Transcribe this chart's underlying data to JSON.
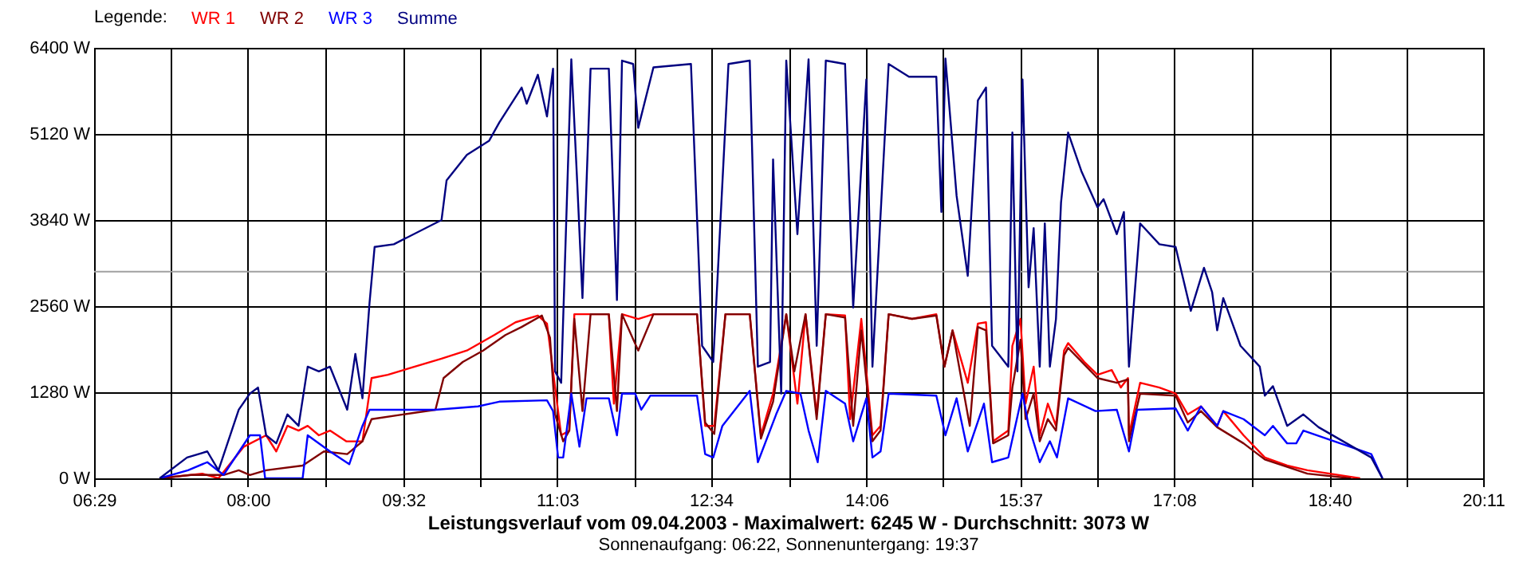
{
  "chart_data": {
    "type": "line",
    "title": "Leistungsverlauf vom 09.04.2003 - Maximalwert: 6245 W - Durchschnitt: 3073 W",
    "subtitle": "Sonnenaufgang: 06:22, Sonnenuntergang: 19:37",
    "legend_title": "Legende:",
    "legend": "top left",
    "grid": true,
    "marker": "none",
    "line_style": "solid",
    "xlim": [
      6.4833,
      20.1833
    ],
    "xticks": [
      {
        "value": 6.4833,
        "label": "06:29"
      },
      {
        "value": 7.2417,
        "label": null
      },
      {
        "value": 8.0,
        "label": "08:00"
      },
      {
        "value": 8.7667,
        "label": null
      },
      {
        "value": 9.5333,
        "label": "09:32"
      },
      {
        "value": 10.2917,
        "label": null
      },
      {
        "value": 11.05,
        "label": "11:03"
      },
      {
        "value": 11.8083,
        "label": null
      },
      {
        "value": 12.5667,
        "label": "12:34"
      },
      {
        "value": 13.3333,
        "label": null
      },
      {
        "value": 14.1,
        "label": "14:06"
      },
      {
        "value": 14.8583,
        "label": null
      },
      {
        "value": 15.6167,
        "label": "15:37"
      },
      {
        "value": 16.375,
        "label": null
      },
      {
        "value": 17.1333,
        "label": "17:08"
      },
      {
        "value": 17.9,
        "label": null
      },
      {
        "value": 18.6667,
        "label": "18:40"
      },
      {
        "value": 19.425,
        "label": null
      },
      {
        "value": 20.1833,
        "label": "20:11"
      }
    ],
    "ylim": [
      0,
      6400
    ],
    "yticks": [
      {
        "value": 0,
        "label": "0 W"
      },
      {
        "value": 1280,
        "label": "1280 W"
      },
      {
        "value": 2560,
        "label": "2560 W"
      },
      {
        "value": 3840,
        "label": "3840 W"
      },
      {
        "value": 5120,
        "label": "5120 W"
      },
      {
        "value": 6400,
        "label": "6400 W"
      }
    ],
    "ref_lines": [
      {
        "axis": "y",
        "value": 3073,
        "color": "#a0a0a0"
      }
    ],
    "series": [
      {
        "name": "WR 1",
        "color": "#ff0000",
        "x": [
          7.13,
          7.55,
          7.71,
          7.96,
          8.18,
          8.28,
          8.39,
          8.5,
          8.59,
          8.7,
          8.81,
          8.97,
          9.13,
          9.22,
          9.38,
          9.91,
          10.16,
          10.43,
          10.64,
          10.86,
          10.95,
          11.01,
          11.09,
          11.17,
          11.22,
          11.38,
          11.56,
          11.61,
          11.69,
          11.85,
          12.0,
          12.43,
          12.51,
          12.6,
          12.71,
          12.95,
          13.06,
          13.18,
          13.31,
          13.42,
          13.5,
          13.61,
          13.7,
          13.89,
          13.94,
          14.05,
          14.16,
          14.24,
          14.32,
          14.55,
          14.79,
          14.87,
          14.95,
          15.1,
          15.2,
          15.28,
          15.35,
          15.5,
          15.54,
          15.62,
          15.67,
          15.75,
          15.81,
          15.89,
          15.97,
          16.05,
          16.09,
          16.25,
          16.38,
          16.52,
          16.61,
          16.68,
          16.69,
          16.8,
          16.99,
          17.15,
          17.27,
          17.4,
          17.56,
          17.62,
          17.82,
          18.03,
          18.25,
          18.45,
          18.97
        ],
        "values": [
          0,
          70,
          0,
          470,
          640,
          400,
          780,
          710,
          780,
          640,
          710,
          550,
          550,
          1490,
          1540,
          1780,
          1900,
          2130,
          2320,
          2420,
          2300,
          1590,
          640,
          710,
          2440,
          2440,
          2440,
          1110,
          2440,
          2370,
          2440,
          2440,
          780,
          780,
          2440,
          2440,
          640,
          1260,
          2440,
          1110,
          2440,
          950,
          2440,
          2420,
          880,
          2370,
          640,
          780,
          2440,
          2370,
          2440,
          1660,
          2200,
          1420,
          2300,
          2320,
          550,
          710,
          1970,
          2370,
          1110,
          1660,
          640,
          1110,
          780,
          1900,
          2010,
          1730,
          1540,
          1610,
          1350,
          1490,
          640,
          1420,
          1350,
          1260,
          950,
          1070,
          780,
          1000,
          640,
          310,
          190,
          120,
          0
        ]
      },
      {
        "name": "WR 2",
        "color": "#800000",
        "x": [
          7.13,
          7.44,
          7.76,
          7.91,
          8.02,
          8.18,
          8.54,
          8.75,
          8.98,
          9.13,
          9.22,
          9.53,
          9.85,
          9.93,
          10.12,
          10.32,
          10.54,
          10.7,
          10.9,
          10.98,
          11.03,
          11.11,
          11.17,
          11.22,
          11.3,
          11.38,
          11.56,
          11.64,
          11.69,
          11.85,
          12.0,
          12.43,
          12.51,
          12.6,
          12.71,
          12.95,
          13.06,
          13.18,
          13.31,
          13.39,
          13.5,
          13.61,
          13.7,
          13.89,
          13.97,
          14.05,
          14.16,
          14.24,
          14.32,
          14.55,
          14.79,
          14.87,
          14.95,
          15.12,
          15.2,
          15.28,
          15.35,
          15.5,
          15.54,
          15.62,
          15.67,
          15.75,
          15.81,
          15.89,
          15.97,
          16.05,
          16.09,
          16.38,
          16.57,
          16.68,
          16.69,
          16.8,
          17.15,
          17.27,
          17.4,
          17.56,
          17.82,
          18.03,
          18.25,
          18.45,
          18.88
        ],
        "values": [
          0,
          50,
          50,
          120,
          50,
          120,
          190,
          400,
          360,
          550,
          880,
          950,
          1020,
          1490,
          1730,
          1900,
          2130,
          2250,
          2420,
          2090,
          950,
          550,
          710,
          2370,
          1000,
          2440,
          2440,
          1000,
          2440,
          1900,
          2440,
          2440,
          830,
          660,
          2440,
          2440,
          590,
          1140,
          2440,
          1590,
          2440,
          880,
          2440,
          2390,
          780,
          2200,
          550,
          710,
          2440,
          2370,
          2420,
          1660,
          2200,
          780,
          2250,
          2200,
          520,
          640,
          1350,
          2060,
          880,
          1260,
          550,
          880,
          710,
          1830,
          1940,
          1490,
          1420,
          1470,
          550,
          1260,
          1230,
          830,
          1000,
          760,
          520,
          280,
          170,
          70,
          0
        ]
      },
      {
        "name": "WR 3",
        "color": "#0000ff",
        "x": [
          7.13,
          7.41,
          7.6,
          7.76,
          8.02,
          8.12,
          8.17,
          8.54,
          8.59,
          8.81,
          9.0,
          9.13,
          9.2,
          9.85,
          10.27,
          10.48,
          10.95,
          11.01,
          11.06,
          11.11,
          11.19,
          11.27,
          11.34,
          11.56,
          11.64,
          11.69,
          11.82,
          11.88,
          11.97,
          12.43,
          12.51,
          12.59,
          12.68,
          12.95,
          13.03,
          13.21,
          13.31,
          13.45,
          13.53,
          13.62,
          13.7,
          13.89,
          13.97,
          14.1,
          14.16,
          14.24,
          14.32,
          14.79,
          14.88,
          14.99,
          15.1,
          15.26,
          15.34,
          15.5,
          15.64,
          15.7,
          15.81,
          15.91,
          15.98,
          16.09,
          16.36,
          16.57,
          16.69,
          16.77,
          17.15,
          17.27,
          17.4,
          17.56,
          17.62,
          17.82,
          18.03,
          18.11,
          18.25,
          18.34,
          18.41,
          19.08,
          19.19
        ],
        "values": [
          0,
          120,
          240,
          50,
          640,
          640,
          0,
          0,
          640,
          400,
          210,
          780,
          1020,
          1020,
          1070,
          1140,
          1160,
          1000,
          310,
          310,
          1260,
          470,
          1190,
          1190,
          640,
          1260,
          1260,
          1020,
          1230,
          1230,
          360,
          310,
          780,
          1300,
          240,
          950,
          1300,
          1260,
          710,
          240,
          1300,
          1110,
          550,
          1190,
          310,
          400,
          1260,
          1230,
          640,
          1190,
          400,
          1110,
          240,
          310,
          1260,
          780,
          240,
          550,
          310,
          1190,
          1000,
          1020,
          400,
          1020,
          1040,
          710,
          1070,
          780,
          1000,
          880,
          640,
          780,
          520,
          520,
          710,
          360,
          0
        ]
      },
      {
        "name": "Summe",
        "color": "#000080",
        "x": [
          7.13,
          7.4,
          7.6,
          7.71,
          7.91,
          8.02,
          8.1,
          8.18,
          8.28,
          8.39,
          8.5,
          8.59,
          8.7,
          8.81,
          8.98,
          9.06,
          9.13,
          9.2,
          9.25,
          9.44,
          9.91,
          9.96,
          10.16,
          10.38,
          10.48,
          10.7,
          10.75,
          10.86,
          10.95,
          11.01,
          11.03,
          11.09,
          11.19,
          11.25,
          11.3,
          11.38,
          11.56,
          11.64,
          11.69,
          11.8,
          11.85,
          12.0,
          12.37,
          12.48,
          12.59,
          12.74,
          12.95,
          13.03,
          13.15,
          13.18,
          13.26,
          13.31,
          13.42,
          13.53,
          13.61,
          13.7,
          13.89,
          13.97,
          14.1,
          14.16,
          14.32,
          14.52,
          14.79,
          14.84,
          14.88,
          14.99,
          15.1,
          15.2,
          15.28,
          15.34,
          15.5,
          15.54,
          15.59,
          15.64,
          15.67,
          15.7,
          15.75,
          15.81,
          15.86,
          15.91,
          15.97,
          16.02,
          16.09,
          16.22,
          16.38,
          16.44,
          16.57,
          16.64,
          16.69,
          16.8,
          16.99,
          17.15,
          17.3,
          17.43,
          17.51,
          17.56,
          17.62,
          17.79,
          17.98,
          18.03,
          18.11,
          18.25,
          18.41,
          18.56,
          19.08,
          19.19
        ],
        "values": [
          0,
          310,
          400,
          120,
          1020,
          1260,
          1350,
          640,
          520,
          950,
          780,
          1660,
          1590,
          1660,
          1020,
          1850,
          1190,
          2610,
          3440,
          3480,
          3840,
          4430,
          4810,
          5020,
          5290,
          5810,
          5570,
          6000,
          5380,
          6090,
          1590,
          1420,
          6230,
          4340,
          2680,
          6090,
          6090,
          2650,
          6210,
          6160,
          5210,
          6110,
          6160,
          1970,
          1730,
          6160,
          6210,
          1660,
          1730,
          4740,
          1260,
          6210,
          3630,
          6230,
          1970,
          6210,
          6160,
          2540,
          5930,
          1660,
          6160,
          5970,
          5970,
          3960,
          6240,
          4200,
          3010,
          5620,
          5810,
          1970,
          1660,
          5140,
          1590,
          5930,
          4340,
          2840,
          3720,
          1660,
          3790,
          1660,
          2370,
          4100,
          5140,
          4570,
          4030,
          4150,
          3630,
          3960,
          1660,
          3790,
          3480,
          3440,
          2490,
          3130,
          2770,
          2200,
          2680,
          1970,
          1660,
          1230,
          1370,
          780,
          950,
          760,
          310,
          0
        ]
      }
    ]
  }
}
